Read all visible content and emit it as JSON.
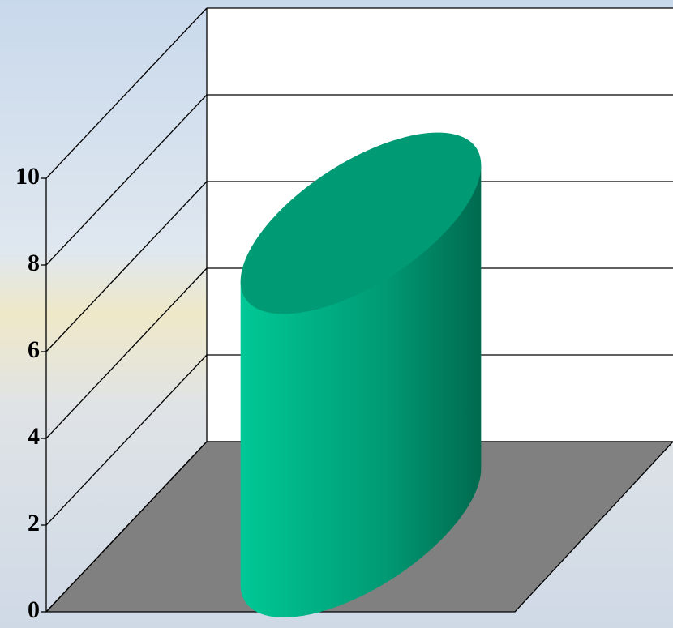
{
  "chart_data": {
    "type": "cylinder",
    "categories": [
      null
    ],
    "values": [
      7
    ],
    "color": "#009a74",
    "ylim": [
      0,
      10
    ],
    "yticks": [
      0,
      2,
      4,
      6,
      8,
      10
    ],
    "grid": true
  }
}
